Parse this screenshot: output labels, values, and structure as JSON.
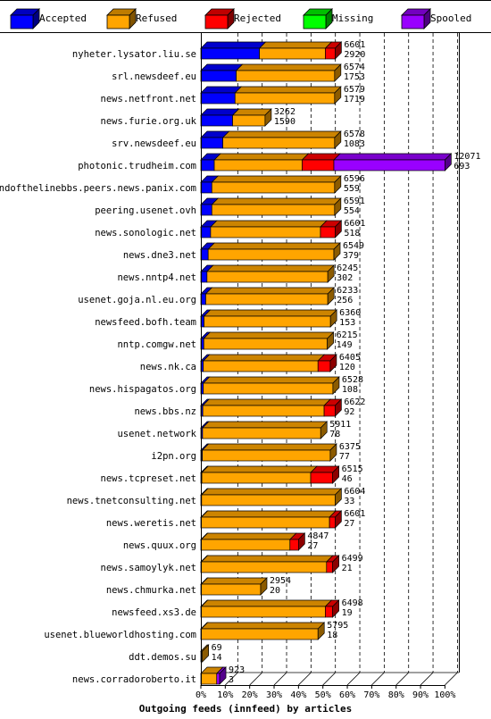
{
  "chart_data": {
    "type": "bar",
    "orientation": "horizontal",
    "stacked": true,
    "title": "Outgoing feeds (innfeed) by articles",
    "xlabel": "",
    "ylabel": "",
    "xlim": [
      0,
      100
    ],
    "x_unit": "%",
    "x_ticks": [
      "0%",
      "10%",
      "20%",
      "30%",
      "40%",
      "50%",
      "60%",
      "70%",
      "80%",
      "90%",
      "100%"
    ],
    "grid": "vertical dashed",
    "legend_position": "top",
    "series": [
      {
        "name": "Accepted",
        "color": "#0000ff"
      },
      {
        "name": "Refused",
        "color": "#ffa500"
      },
      {
        "name": "Rejected",
        "color": "#ff0000"
      },
      {
        "name": "Missing",
        "color": "#00ff00"
      },
      {
        "name": "Spooled",
        "color": "#9900ff"
      }
    ],
    "categories": [
      {
        "name": "nyheter.lysator.liu.se",
        "label_top": "6601",
        "label_bottom": "2920",
        "values": [
          24,
          27,
          4,
          0,
          0
        ]
      },
      {
        "name": "srl.newsdeef.eu",
        "label_top": "6574",
        "label_bottom": "1753",
        "values": [
          14.5,
          40.3,
          0,
          0,
          0
        ]
      },
      {
        "name": "news.netfront.net",
        "label_top": "6579",
        "label_bottom": "1719",
        "values": [
          14,
          40.8,
          0,
          0,
          0
        ]
      },
      {
        "name": "news.furie.org.uk",
        "label_top": "3262",
        "label_bottom": "1590",
        "values": [
          13,
          13.3,
          0,
          0,
          0
        ]
      },
      {
        "name": "srv.newsdeef.eu",
        "label_top": "6578",
        "label_bottom": "1083",
        "values": [
          9,
          45.8,
          0,
          0,
          0
        ]
      },
      {
        "name": "photonic.trudheim.com",
        "label_top": "12071",
        "label_bottom": "693",
        "values": [
          5.5,
          36,
          13,
          0,
          45.5
        ]
      },
      {
        "name": "endofthelinebbs.peers.news.panix.com",
        "label_top": "6596",
        "label_bottom": "559",
        "values": [
          4.5,
          50.3,
          0,
          0,
          0
        ]
      },
      {
        "name": "peering.usenet.ovh",
        "label_top": "6591",
        "label_bottom": "554",
        "values": [
          4.5,
          50.3,
          0,
          0,
          0
        ]
      },
      {
        "name": "news.sonologic.net",
        "label_top": "6601",
        "label_bottom": "518",
        "values": [
          4,
          45,
          6,
          0,
          0
        ]
      },
      {
        "name": "news.dne3.net",
        "label_top": "6549",
        "label_bottom": "379",
        "values": [
          3,
          51.5,
          0,
          0,
          0
        ]
      },
      {
        "name": "news.nntp4.net",
        "label_top": "6245",
        "label_bottom": "302",
        "values": [
          2.5,
          49.5,
          0,
          0,
          0
        ]
      },
      {
        "name": "usenet.goja.nl.eu.org",
        "label_top": "6233",
        "label_bottom": "256",
        "values": [
          2,
          50,
          0,
          0,
          0
        ]
      },
      {
        "name": "newsfeed.bofh.team",
        "label_top": "6360",
        "label_bottom": "153",
        "values": [
          1.3,
          51.8,
          0,
          0,
          0
        ]
      },
      {
        "name": "nntp.comgw.net",
        "label_top": "6215",
        "label_bottom": "149",
        "values": [
          1.2,
          50.6,
          0,
          0,
          0
        ]
      },
      {
        "name": "news.nk.ca",
        "label_top": "6405",
        "label_bottom": "120",
        "values": [
          1,
          47,
          5,
          0,
          0
        ]
      },
      {
        "name": "news.hispagatos.org",
        "label_top": "6528",
        "label_bottom": "108",
        "values": [
          1,
          53.1,
          0,
          0,
          0
        ]
      },
      {
        "name": "news.bbs.nz",
        "label_top": "6622",
        "label_bottom": "92",
        "values": [
          0.8,
          49.7,
          4.5,
          0,
          0
        ]
      },
      {
        "name": "usenet.network",
        "label_top": "5911",
        "label_bottom": "78",
        "values": [
          0.7,
          48.4,
          0,
          0,
          0
        ]
      },
      {
        "name": "i2pn.org",
        "label_top": "6375",
        "label_bottom": "77",
        "values": [
          0.6,
          52.4,
          0,
          0,
          0
        ]
      },
      {
        "name": "news.tcpreset.net",
        "label_top": "6515",
        "label_bottom": "46",
        "values": [
          0.4,
          44.6,
          9,
          0,
          0
        ]
      },
      {
        "name": "news.tnetconsulting.net",
        "label_top": "6604",
        "label_bottom": "33",
        "values": [
          0.3,
          54.7,
          0,
          0,
          0
        ]
      },
      {
        "name": "news.weretis.net",
        "label_top": "6601",
        "label_bottom": "27",
        "values": [
          0.2,
          52.5,
          2.3,
          0,
          0
        ]
      },
      {
        "name": "news.quux.org",
        "label_top": "4847",
        "label_bottom": "27",
        "values": [
          0.2,
          36.3,
          3.5,
          0,
          0
        ]
      },
      {
        "name": "news.samoylyk.net",
        "label_top": "6499",
        "label_bottom": "21",
        "values": [
          0.2,
          51.3,
          2.5,
          0,
          0
        ]
      },
      {
        "name": "news.chmurka.net",
        "label_top": "2954",
        "label_bottom": "20",
        "values": [
          0.2,
          24.3,
          0,
          0,
          0
        ]
      },
      {
        "name": "newsfeed.xs3.de",
        "label_top": "6498",
        "label_bottom": "19",
        "values": [
          0.2,
          50.8,
          3,
          0,
          0
        ]
      },
      {
        "name": "usenet.blueworldhosting.com",
        "label_top": "5795",
        "label_bottom": "18",
        "values": [
          0.2,
          47.8,
          0,
          0,
          0
        ]
      },
      {
        "name": "ddt.demos.su",
        "label_top": "69",
        "label_bottom": "14",
        "values": [
          0,
          0.6,
          0,
          0,
          0
        ]
      },
      {
        "name": "news.corradoroberto.it",
        "label_top": "923",
        "label_bottom": "3",
        "values": [
          0,
          6.5,
          0,
          0,
          1.2
        ]
      }
    ]
  }
}
